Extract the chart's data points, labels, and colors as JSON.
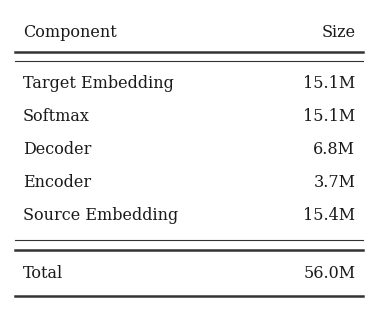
{
  "header": [
    "Component",
    "Size"
  ],
  "rows": [
    [
      "Target Embedding",
      "15.1M"
    ],
    [
      "Softmax",
      "15.1M"
    ],
    [
      "Decoder",
      "6.8M"
    ],
    [
      "Encoder",
      "3.7M"
    ],
    [
      "Source Embedding",
      "15.4M"
    ]
  ],
  "footer": [
    "Total",
    "56.0M"
  ],
  "bg_color": "#ffffff",
  "text_color": "#1a1a1a",
  "font_size": 11.5,
  "line_color": "#333333",
  "thick_lw": 1.8,
  "thin_lw": 0.8
}
